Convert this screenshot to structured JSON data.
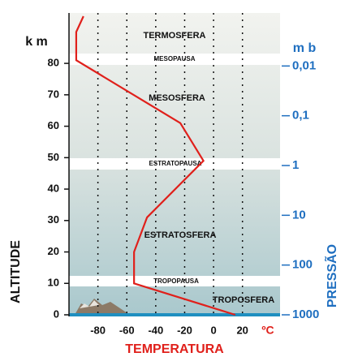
{
  "chart_data": {
    "type": "line",
    "x_label": "TEMPERATURA",
    "x_unit": "ºC",
    "y_label": "ALTITUDE",
    "y_unit": "k m",
    "y2_label": "PRESSÃO",
    "y2_unit": "m b",
    "x": [
      15,
      -55,
      -55,
      -46,
      -7,
      -23,
      -95,
      -95,
      -90
    ],
    "values": [
      0,
      10,
      20,
      31,
      49,
      61,
      81,
      90,
      95
    ],
    "color": "#e0201b",
    "xlim": [
      -100,
      46
    ],
    "xticks": [
      -80,
      -60,
      -40,
      -20,
      0,
      20
    ],
    "ylim": [
      0,
      95
    ],
    "yticks": [
      0,
      10,
      20,
      30,
      40,
      50,
      60,
      70,
      80
    ],
    "y2lim": [
      1000,
      0.001
    ],
    "y2scale": "log",
    "y2ticks": [
      {
        "value": 0.01,
        "label": "0,01"
      },
      {
        "value": 0.1,
        "label": "0,1"
      },
      1,
      10,
      100,
      1000
    ],
    "grid": true,
    "annotations": [
      "TERMOSFERA",
      "MESOPAUSA",
      "MESOSFERA",
      "ESTRATOPAUSA",
      "ESTRATOSFERA",
      "TROPOPAUSA",
      "TROPOSFERA"
    ]
  }
}
